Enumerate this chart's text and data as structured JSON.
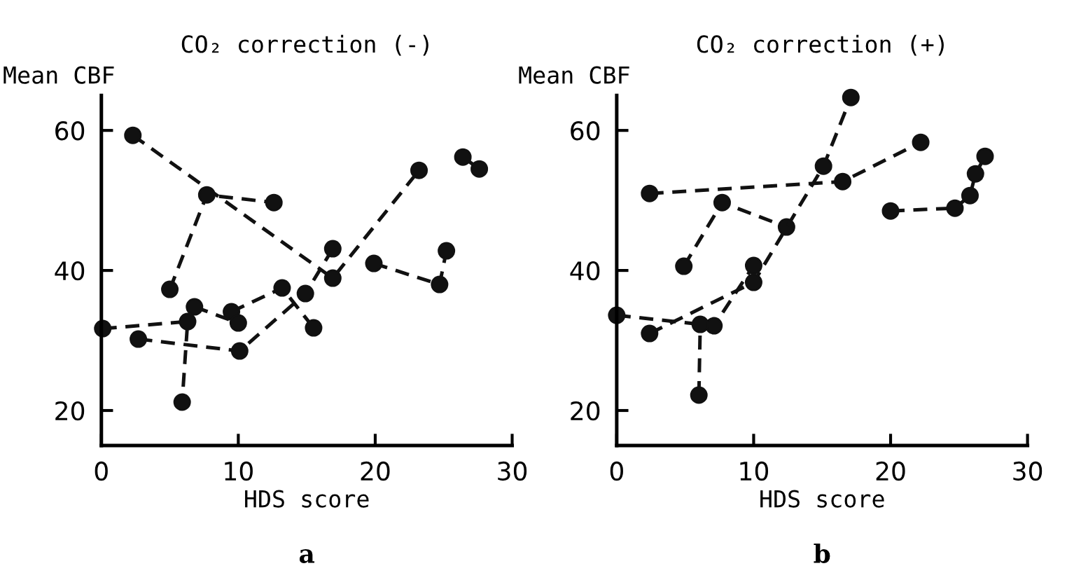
{
  "chart_data": [
    {
      "type": "line",
      "title": "CO₂ correction (-)",
      "xlabel": "HDS score",
      "ylabel": "Mean CBF",
      "annotations": [
        "a"
      ],
      "xlim": [
        0,
        30
      ],
      "ylim": [
        15,
        65
      ],
      "xticks": [
        0,
        10,
        20,
        30
      ],
      "yticks": [
        20,
        40,
        60
      ],
      "grid": false,
      "legend": false,
      "marker": "circle",
      "line_style": "dashed",
      "series": [
        {
          "color": "#111111",
          "x": [
            2.3,
            16.9,
            23.2
          ],
          "values": [
            59.3,
            38.9,
            54.3
          ]
        },
        {
          "color": "#111111",
          "x": [
            2.7,
            10.1,
            14.9,
            16.9
          ],
          "values": [
            30.2,
            28.5,
            36.7,
            43.1
          ]
        },
        {
          "color": "#111111",
          "x": [
            9.5,
            13.2,
            15.5
          ],
          "values": [
            34.1,
            37.5,
            31.8
          ]
        },
        {
          "color": "#111111",
          "x": [
            6.8,
            10.0
          ],
          "values": [
            34.8,
            32.5
          ]
        },
        {
          "color": "#111111",
          "x": [
            0.1,
            6.3,
            5.9
          ],
          "values": [
            31.7,
            32.7,
            21.2
          ]
        },
        {
          "color": "#111111",
          "x": [
            5.0,
            7.7,
            12.6
          ],
          "values": [
            37.3,
            50.8,
            49.7
          ]
        },
        {
          "color": "#111111",
          "x": [
            19.9,
            24.7,
            25.2
          ],
          "values": [
            41.0,
            38.0,
            42.8
          ]
        },
        {
          "color": "#111111",
          "x": [
            26.4,
            27.6
          ],
          "values": [
            56.2,
            54.5
          ]
        }
      ]
    },
    {
      "type": "line",
      "title": "CO₂ correction (+)",
      "xlabel": "HDS score",
      "ylabel": "Mean CBF",
      "annotations": [
        "b"
      ],
      "xlim": [
        0,
        30
      ],
      "ylim": [
        15,
        65
      ],
      "xticks": [
        0,
        10,
        20,
        30
      ],
      "yticks": [
        20,
        40,
        60
      ],
      "grid": false,
      "legend": false,
      "marker": "circle",
      "line_style": "dashed",
      "series": [
        {
          "color": "#111111",
          "x": [
            2.4,
            16.5,
            22.2
          ],
          "values": [
            51.0,
            52.7,
            58.3
          ]
        },
        {
          "color": "#111111",
          "x": [
            4.9,
            7.7,
            12.4
          ],
          "values": [
            40.6,
            49.7,
            46.2
          ]
        },
        {
          "color": "#111111",
          "x": [
            0,
            7.1,
            10.0
          ],
          "values": [
            33.6,
            32.1,
            40.7
          ]
        },
        {
          "color": "#111111",
          "x": [
            6.0,
            6.1
          ],
          "values": [
            22.2,
            32.3
          ]
        },
        {
          "color": "#111111",
          "x": [
            2.4,
            10.0,
            15.1,
            17.1
          ],
          "values": [
            31.0,
            38.3,
            54.9,
            64.7
          ]
        },
        {
          "color": "#111111",
          "x": [
            20.0,
            24.7,
            25.8,
            26.2,
            26.9
          ],
          "values": [
            48.5,
            48.9,
            50.7,
            53.8,
            56.3
          ]
        }
      ]
    }
  ]
}
